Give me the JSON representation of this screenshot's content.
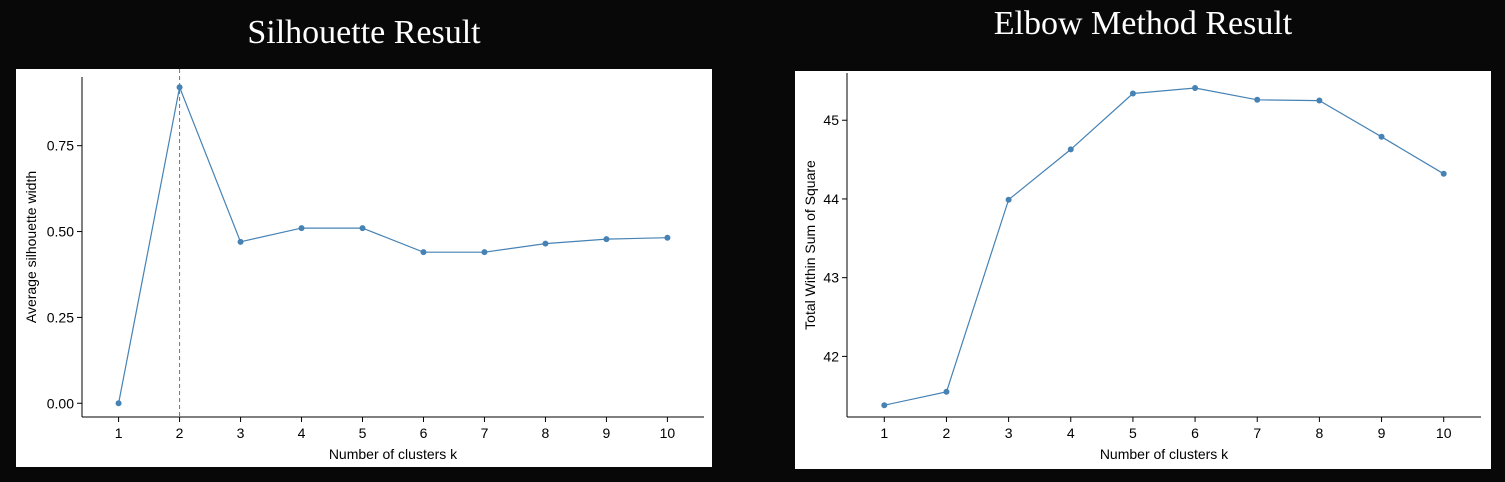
{
  "titles": {
    "left": "Silhouette Result",
    "right": "Elbow Method Result"
  },
  "colors": {
    "background": "#080808",
    "series": "#4682b4",
    "panel": "#ffffff"
  },
  "chart_data": [
    {
      "type": "line",
      "title": "Silhouette Result",
      "xlabel": "Number of clusters k",
      "ylabel": "Average silhouette width",
      "x": [
        1,
        2,
        3,
        4,
        5,
        6,
        7,
        8,
        9,
        10
      ],
      "values": [
        0.0,
        0.92,
        0.47,
        0.51,
        0.51,
        0.44,
        0.44,
        0.465,
        0.478,
        0.482
      ],
      "xlim": [
        0.4,
        10.6
      ],
      "ylim": [
        -0.04,
        0.95
      ],
      "yticks": [
        0.0,
        0.25,
        0.5,
        0.75
      ],
      "ytick_labels": [
        "0.00",
        "0.25",
        "0.50",
        "0.75"
      ],
      "xtick_labels": [
        "1",
        "2",
        "3",
        "4",
        "5",
        "6",
        "7",
        "8",
        "9",
        "10"
      ],
      "vline_x": 2,
      "grid": false,
      "markers": true
    },
    {
      "type": "line",
      "title": "Elbow Method Result",
      "xlabel": "Number of clusters k",
      "ylabel": "Total Within Sum of Square",
      "x": [
        1,
        2,
        3,
        4,
        5,
        6,
        7,
        8,
        9,
        10
      ],
      "values": [
        41.38,
        41.55,
        43.99,
        44.63,
        45.34,
        45.41,
        45.26,
        45.25,
        44.79,
        44.32
      ],
      "xlim": [
        0.4,
        10.6
      ],
      "ylim": [
        41.23,
        45.6
      ],
      "yticks": [
        42,
        43,
        44,
        45
      ],
      "ytick_labels": [
        "42",
        "43",
        "44",
        "45"
      ],
      "xtick_labels": [
        "1",
        "2",
        "3",
        "4",
        "5",
        "6",
        "7",
        "8",
        "9",
        "10"
      ],
      "grid": false,
      "markers": true
    }
  ]
}
